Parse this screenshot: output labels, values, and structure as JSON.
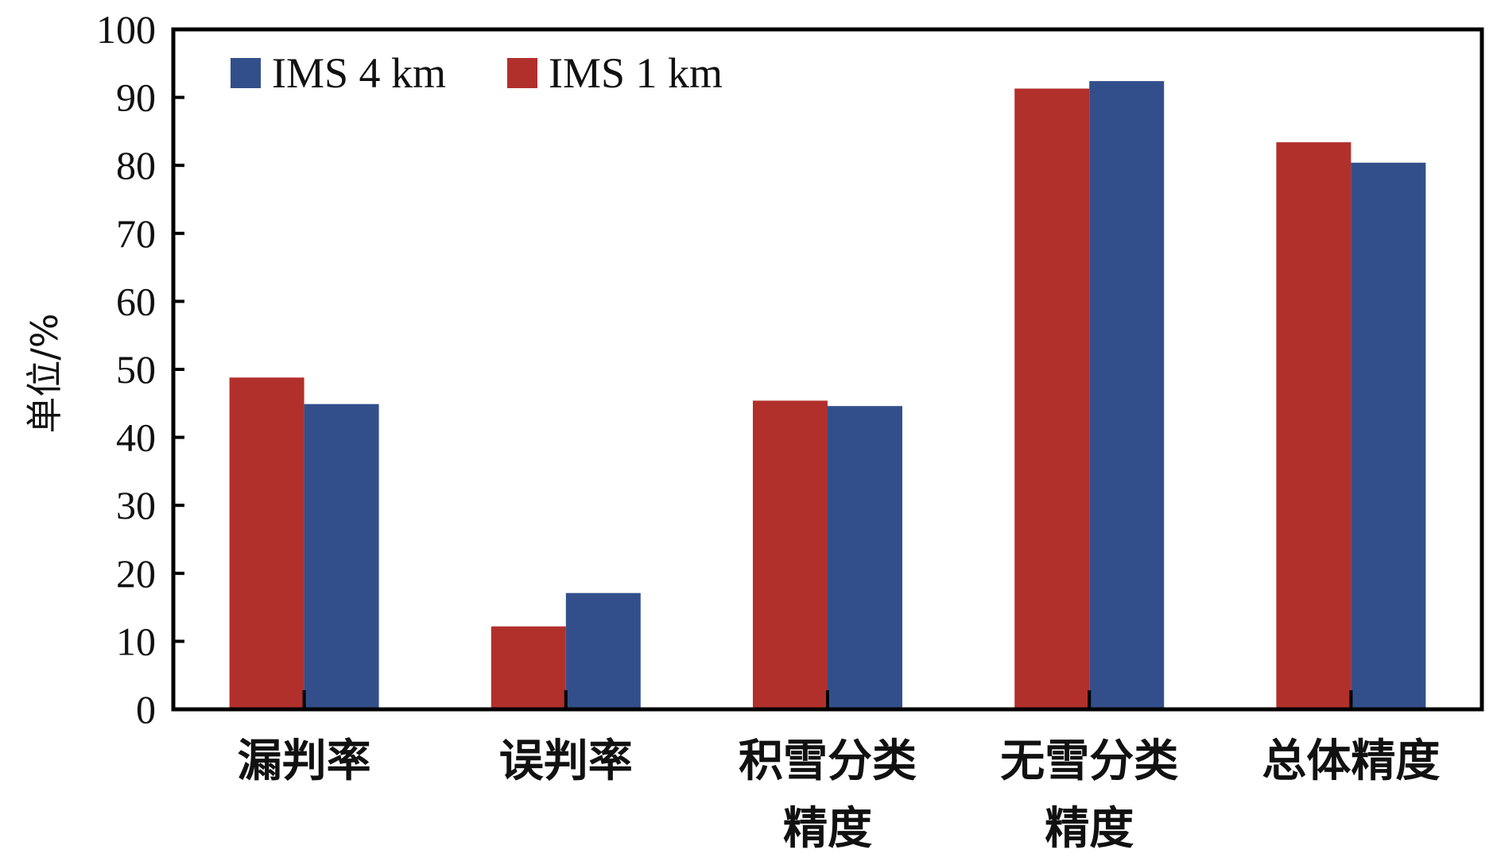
{
  "chart_data": {
    "type": "bar",
    "title": "",
    "xlabel": "",
    "ylabel": "单位/%",
    "ylim": [
      0,
      100
    ],
    "yticks": [
      0,
      10,
      20,
      30,
      40,
      50,
      60,
      70,
      80,
      90,
      100
    ],
    "grid": false,
    "legend_position": "top-left",
    "categories": [
      [
        "漏判率"
      ],
      [
        "误判率"
      ],
      [
        "积雪分类",
        "精度"
      ],
      [
        "无雪分类",
        "精度"
      ],
      [
        "总体精度"
      ]
    ],
    "series": [
      {
        "name": "IMS 1 km",
        "color": "#b2302c",
        "values": [
          48.8,
          12.2,
          45.4,
          91.3,
          83.4
        ]
      },
      {
        "name": "IMS 4 km",
        "color": "#334f8b",
        "values": [
          44.9,
          17.1,
          44.6,
          92.4,
          80.4
        ]
      }
    ],
    "legend_order": [
      "IMS 4 km",
      "IMS 1 km"
    ]
  }
}
